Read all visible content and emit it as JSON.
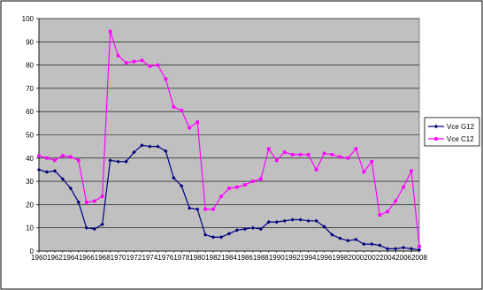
{
  "chart_data": {
    "type": "line",
    "title": "",
    "xlabel": "",
    "ylabel": "",
    "ylim": [
      0,
      100
    ],
    "y_ticks": [
      0,
      10,
      20,
      30,
      40,
      50,
      60,
      70,
      80,
      90,
      100
    ],
    "grid": "horizontal",
    "legend_position": "right",
    "plot_background": "#c0c0c0",
    "x": [
      "1960",
      "1961",
      "1962",
      "1963",
      "1964",
      "1965",
      "1966",
      "1967",
      "1968",
      "1969",
      "1970",
      "1971",
      "1972",
      "1973",
      "1974",
      "1975",
      "1976",
      "1977",
      "1978",
      "1979",
      "1980",
      "1981",
      "1982",
      "1983",
      "1984",
      "1985",
      "1986",
      "1987",
      "1988",
      "1989",
      "1990",
      "1991",
      "1992",
      "1993",
      "1994",
      "1995",
      "1996",
      "1997",
      "1998",
      "1999",
      "2000",
      "2001",
      "2002",
      "2003",
      "2004",
      "2005",
      "2006",
      "2007",
      "2008"
    ],
    "x_tick_labels": [
      "1960",
      "1962",
      "1964",
      "1966",
      "1968",
      "1970",
      "1972",
      "1974",
      "1976",
      "1978",
      "1980",
      "1982",
      "1984",
      "1986",
      "1988",
      "1990",
      "1992",
      "1994",
      "1996",
      "1998",
      "2000",
      "2002",
      "2004",
      "2006",
      "2008"
    ],
    "series": [
      {
        "name": "Vce G12",
        "color": "#000080",
        "marker": "diamond",
        "values": [
          35,
          34,
          34.5,
          31,
          27,
          21,
          10,
          9.5,
          11.5,
          39,
          38.5,
          38.5,
          42.5,
          45.5,
          45,
          45,
          43,
          31.5,
          28,
          18.5,
          18,
          7,
          6,
          6,
          7.5,
          9,
          9.5,
          10,
          9.5,
          12.5,
          12.5,
          13,
          13.5,
          13.5,
          13,
          13,
          10.5,
          7,
          5.5,
          4.5,
          5,
          3,
          3,
          2.5,
          1,
          1,
          1.5,
          1,
          0.5
        ]
      },
      {
        "name": "Vce C12",
        "color": "#ff00ff",
        "marker": "square",
        "values": [
          41,
          40,
          39,
          41,
          40.5,
          39,
          21,
          21.5,
          23.5,
          94.5,
          84,
          81,
          81.5,
          82,
          79.5,
          80,
          74,
          62,
          60.5,
          53,
          55.5,
          18,
          18,
          23.5,
          27,
          27.5,
          28.5,
          30,
          31,
          44,
          39,
          42.5,
          41.5,
          41.5,
          41.5,
          35,
          42,
          41.5,
          40.5,
          40,
          44,
          34,
          38.5,
          15.5,
          17,
          21.5,
          27.5,
          34.5,
          2
        ]
      }
    ]
  }
}
